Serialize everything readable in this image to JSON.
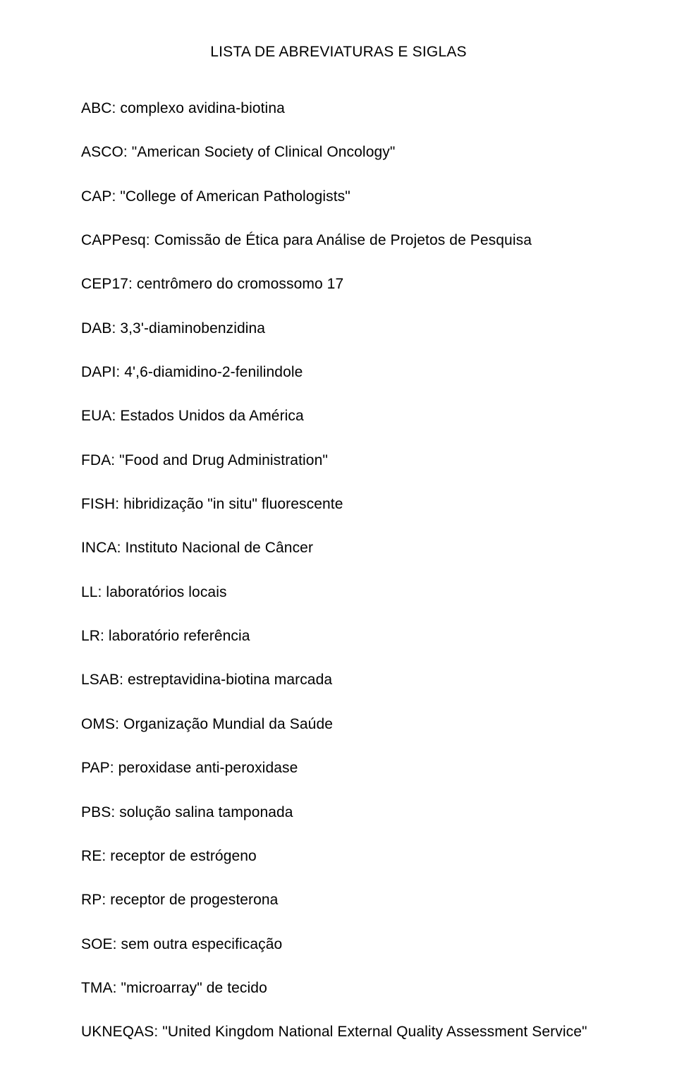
{
  "document": {
    "title": "LISTA DE ABREVIATURAS E SIGLAS",
    "title_fontsize": 21,
    "body_fontsize": 21,
    "text_color": "#000000",
    "background_color": "#ffffff",
    "font_family": "Arial",
    "entries": [
      "ABC: complexo avidina-biotina",
      "ASCO: \"American Society of Clinical Oncology\"",
      "CAP: \"College of American Pathologists\"",
      "CAPPesq: Comissão de Ética para Análise de Projetos de Pesquisa",
      "CEP17: centrômero do cromossomo 17",
      "DAB: 3,3'-diaminobenzidina",
      "DAPI: 4',6-diamidino-2-fenilindole",
      "EUA: Estados Unidos da América",
      "FDA: \"Food and Drug Administration\"",
      "FISH: hibridização \"in situ\" fluorescente",
      "INCA: Instituto Nacional de Câncer",
      "LL: laboratórios locais",
      "LR: laboratório referência",
      "LSAB: estreptavidina-biotina marcada",
      "OMS: Organização Mundial da Saúde",
      "PAP: peroxidase anti-peroxidase",
      "PBS: solução salina tamponada",
      "RE: receptor de estrógeno",
      "RP: receptor de progesterona",
      "SOE: sem outra especificação",
      "TMA: \"microarray\" de tecido",
      "UKNEQAS: \"United Kingdom National External Quality Assessment Service\""
    ]
  }
}
